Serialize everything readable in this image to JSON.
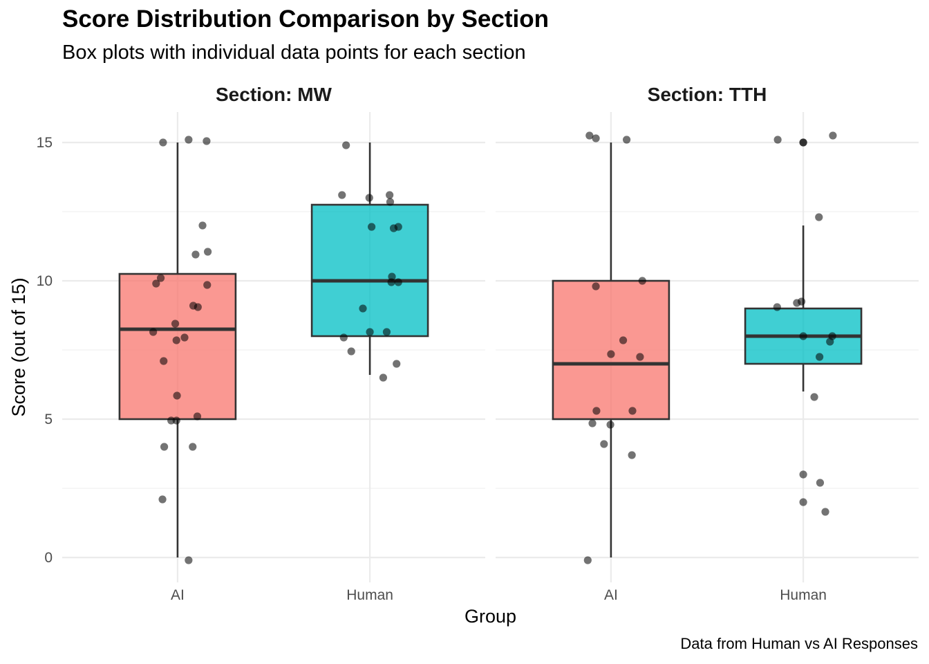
{
  "title": "Score Distribution Comparison by Section",
  "subtitle": "Box plots with individual data points for each section",
  "caption": "Data from Human vs AI Responses",
  "chart_data": {
    "type": "box",
    "xlabel": "Group",
    "ylabel": "Score (out of 15)",
    "ylim": [
      -0.9,
      16.1
    ],
    "yticks": [
      0,
      5,
      10,
      15
    ],
    "grid": true,
    "legend": "none",
    "categories": [
      "AI",
      "Human"
    ],
    "colors": {
      "AI": "#f8766d",
      "Human": "#00bfc4"
    },
    "panels": [
      {
        "label": "Section: MW",
        "boxes": [
          {
            "group": "AI",
            "min": 0,
            "q1": 5,
            "median": 8.25,
            "q3": 10.25,
            "max": 15,
            "points": [
              {
                "dx": -0.25,
                "y": 15
              },
              {
                "dx": 0.19,
                "y": 15.1
              },
              {
                "dx": 0.5,
                "y": 15.05
              },
              {
                "dx": 0.43,
                "y": 12
              },
              {
                "dx": 0.31,
                "y": 10.95
              },
              {
                "dx": 0.52,
                "y": 11.05
              },
              {
                "dx": -0.29,
                "y": 10.1
              },
              {
                "dx": -0.37,
                "y": 9.9
              },
              {
                "dx": 0.51,
                "y": 9.85
              },
              {
                "dx": 0.27,
                "y": 9.1
              },
              {
                "dx": 0.35,
                "y": 9.05
              },
              {
                "dx": -0.04,
                "y": 8.45
              },
              {
                "dx": -0.42,
                "y": 8.15
              },
              {
                "dx": 0.12,
                "y": 7.95
              },
              {
                "dx": -0.02,
                "y": 7.85
              },
              {
                "dx": -0.24,
                "y": 7.1
              },
              {
                "dx": -0.01,
                "y": 5.85
              },
              {
                "dx": 0.34,
                "y": 5.1
              },
              {
                "dx": -0.11,
                "y": 4.95
              },
              {
                "dx": -0.02,
                "y": 4.95
              },
              {
                "dx": -0.23,
                "y": 4
              },
              {
                "dx": 0.26,
                "y": 4
              },
              {
                "dx": -0.26,
                "y": 2.1
              },
              {
                "dx": 0.19,
                "y": -0.1
              }
            ]
          },
          {
            "group": "Human",
            "min": 6.6,
            "q1": 8,
            "median": 10,
            "q3": 12.75,
            "max": 15,
            "points": [
              {
                "dx": -0.41,
                "y": 14.9
              },
              {
                "dx": -0.48,
                "y": 13.1
              },
              {
                "dx": -0.01,
                "y": 13
              },
              {
                "dx": 0.34,
                "y": 13.1
              },
              {
                "dx": 0.35,
                "y": 12.85
              },
              {
                "dx": 0.03,
                "y": 11.95
              },
              {
                "dx": 0.41,
                "y": 11.9
              },
              {
                "dx": 0.49,
                "y": 11.95
              },
              {
                "dx": 0.38,
                "y": 10.15
              },
              {
                "dx": 0.37,
                "y": 9.95
              },
              {
                "dx": 0.49,
                "y": 9.95
              },
              {
                "dx": -0.12,
                "y": 9
              },
              {
                "dx": -0.45,
                "y": 7.95
              },
              {
                "dx": 0.0,
                "y": 8.15
              },
              {
                "dx": 0.29,
                "y": 8.15
              },
              {
                "dx": -0.32,
                "y": 7.45
              },
              {
                "dx": 0.46,
                "y": 7
              },
              {
                "dx": 0.23,
                "y": 6.5
              }
            ]
          }
        ]
      },
      {
        "label": "Section: TTH",
        "boxes": [
          {
            "group": "AI",
            "min": 0,
            "q1": 5,
            "median": 7,
            "q3": 10,
            "max": 15,
            "points": [
              {
                "dx": -0.37,
                "y": 15.25
              },
              {
                "dx": -0.26,
                "y": 15.15
              },
              {
                "dx": 0.27,
                "y": 15.1
              },
              {
                "dx": 0.54,
                "y": 10
              },
              {
                "dx": -0.26,
                "y": 9.8
              },
              {
                "dx": 0.21,
                "y": 7.85
              },
              {
                "dx": 0.0,
                "y": 7.35
              },
              {
                "dx": 0.5,
                "y": 7.25
              },
              {
                "dx": -0.25,
                "y": 5.3
              },
              {
                "dx": 0.37,
                "y": 5.3
              },
              {
                "dx": -0.32,
                "y": 4.85
              },
              {
                "dx": -0.01,
                "y": 4.8
              },
              {
                "dx": -0.12,
                "y": 4.1
              },
              {
                "dx": 0.36,
                "y": 3.7
              },
              {
                "dx": -0.4,
                "y": -0.1
              }
            ]
          },
          {
            "group": "Human",
            "min": 6,
            "q1": 7,
            "median": 8,
            "q3": 9,
            "max": 12,
            "points": [
              {
                "dx": -0.44,
                "y": 15.1
              },
              {
                "dx": 0.0,
                "y": 15
              },
              {
                "dx": 0.0,
                "y": 15
              },
              {
                "dx": 0.51,
                "y": 15.25
              },
              {
                "dx": 0.27,
                "y": 12.3
              },
              {
                "dx": -0.11,
                "y": 9.2
              },
              {
                "dx": -0.03,
                "y": 9.25
              },
              {
                "dx": -0.45,
                "y": 9.05
              },
              {
                "dx": 0.0,
                "y": 8
              },
              {
                "dx": 0.5,
                "y": 8
              },
              {
                "dx": 0.46,
                "y": 7.8
              },
              {
                "dx": 0.28,
                "y": 7.25
              },
              {
                "dx": 0.19,
                "y": 5.8
              },
              {
                "dx": 0.0,
                "y": 3
              },
              {
                "dx": 0.29,
                "y": 2.7
              },
              {
                "dx": 0.0,
                "y": 2
              },
              {
                "dx": 0.38,
                "y": 1.65
              }
            ]
          }
        ]
      }
    ]
  }
}
